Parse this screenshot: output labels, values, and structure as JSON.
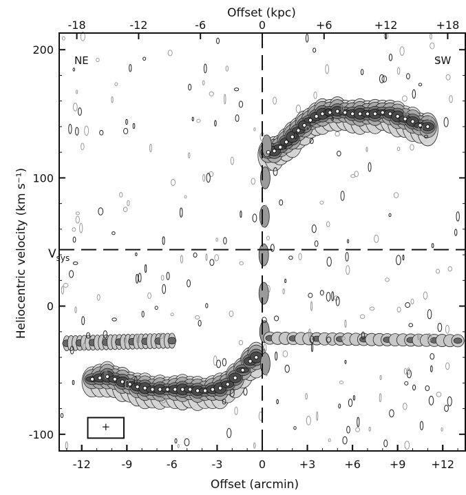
{
  "chart_data": {
    "type": "position-velocity diagram",
    "xlabel": "Offset (arcmin)",
    "x2label": "Offset (kpc)",
    "ylabel": "Heliocentric velocity (km s⁻¹)",
    "xlim": [
      -13.5,
      13.5
    ],
    "ylim": [
      -113,
      213
    ],
    "x_ticks": [
      {
        "value": -12,
        "label": "-12"
      },
      {
        "value": -9,
        "label": "-9"
      },
      {
        "value": -6,
        "label": "-6"
      },
      {
        "value": -3,
        "label": "-3"
      },
      {
        "value": 0,
        "label": "0"
      },
      {
        "value": 3,
        "label": "+3"
      },
      {
        "value": 6,
        "label": "+6"
      },
      {
        "value": 9,
        "label": "+9"
      },
      {
        "value": 12,
        "label": "+12"
      }
    ],
    "x2_ticks": [
      {
        "value": -18,
        "label": "-18"
      },
      {
        "value": -12,
        "label": "-12"
      },
      {
        "value": -6,
        "label": "-6"
      },
      {
        "value": 0,
        "label": "0"
      },
      {
        "value": 6,
        "label": "+6"
      },
      {
        "value": 12,
        "label": "+12"
      },
      {
        "value": 18,
        "label": "+18"
      }
    ],
    "kpc_per_arcmin": 1.46,
    "y_ticks": [
      {
        "value": 200,
        "label": "200"
      },
      {
        "value": 100,
        "label": "100"
      },
      {
        "value": 0,
        "label": "0"
      },
      {
        "value": -100,
        "label": "-100"
      }
    ],
    "annotations": {
      "left": "NE",
      "right": "SW",
      "vsys": "V",
      "vsys_sub": "sys"
    },
    "vsys": 44,
    "rotation_curve": {
      "x": [
        -11.3,
        -10.8,
        -10.3,
        -9.8,
        -9.3,
        -8.8,
        -8.3,
        -7.8,
        -7.3,
        -6.8,
        -6.3,
        -5.8,
        -5.3,
        -4.8,
        -4.3,
        -3.8,
        -3.3,
        -2.8,
        -2.3,
        -1.8,
        -1.3,
        -0.8,
        -0.4,
        0.4,
        0.8,
        1.2,
        1.6,
        2.0,
        2.4,
        2.8,
        3.2,
        3.6,
        4.0,
        4.5,
        5.0,
        5.5,
        6.0,
        6.5,
        7.0,
        7.5,
        8.0,
        8.5,
        9.0,
        9.5,
        10.0,
        10.5,
        11.0
      ],
      "y": [
        -57,
        -56,
        -55,
        -57,
        -59,
        -61,
        -63,
        -64,
        -65,
        -65,
        -65,
        -65,
        -65,
        -65,
        -66,
        -66,
        -65,
        -64,
        -61,
        -56,
        -50,
        -43,
        -40,
        120,
        121,
        124,
        128,
        132,
        137,
        141,
        145,
        148,
        150,
        151,
        152,
        151,
        150,
        150,
        150,
        150,
        151,
        150,
        148,
        146,
        144,
        141,
        140
      ]
    },
    "hi_lines": {
      "upper_left": [
        -13,
        -29,
        -6,
        -27
      ],
      "right": [
        0.5,
        -25,
        13,
        -27
      ]
    },
    "beam": {
      "x": 1,
      "y": 1
    }
  }
}
